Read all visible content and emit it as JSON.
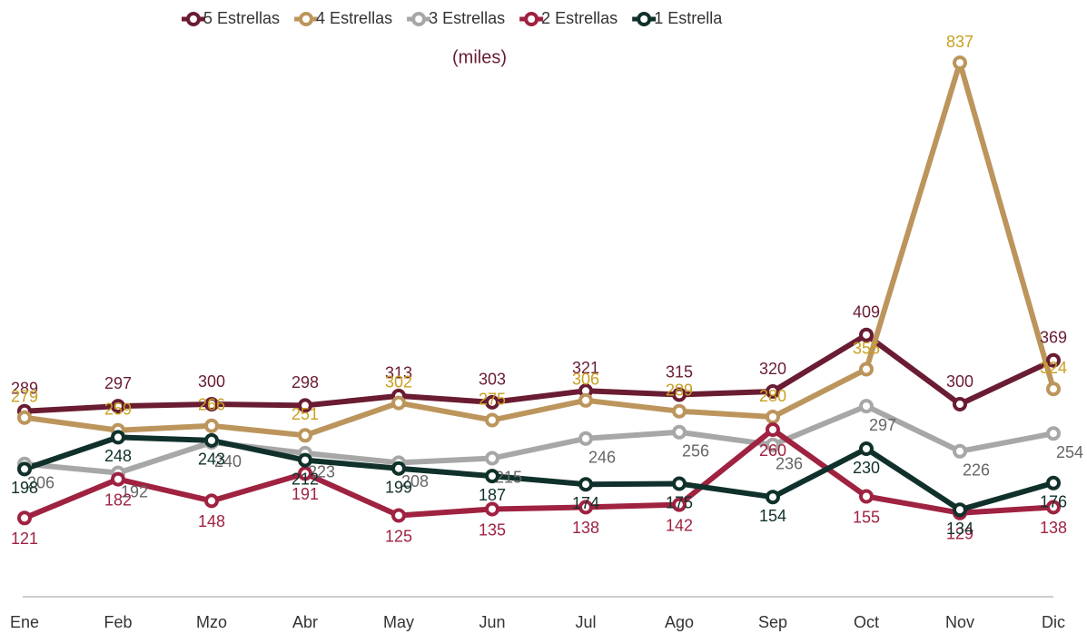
{
  "chart_data": {
    "type": "line",
    "subtitle": "(miles)",
    "categories": [
      "Ene",
      "Feb",
      "Mzo",
      "Abr",
      "May",
      "Jun",
      "Jul",
      "Ago",
      "Sep",
      "Oct",
      "Nov",
      "Dic"
    ],
    "ylim": [
      0,
      900
    ],
    "series": [
      {
        "name": "5 Estrellas",
        "color": "#691c32",
        "label_color": "#691c32",
        "values": [
          289,
          297,
          300,
          298,
          313,
          303,
          321,
          315,
          320,
          409,
          300,
          369
        ]
      },
      {
        "name": "4 Estrellas",
        "color": "#bc955c",
        "label_color": "#c9a020",
        "values": [
          279,
          259,
          266,
          251,
          302,
          275,
          306,
          289,
          280,
          355,
          837,
          324
        ]
      },
      {
        "name": "3 Estrellas",
        "color": "#a7a7a7",
        "label_color": "#666666",
        "values": [
          206,
          192,
          240,
          223,
          208,
          215,
          246,
          256,
          236,
          297,
          226,
          254
        ]
      },
      {
        "name": "2 Estrellas",
        "color": "#9f2241",
        "label_color": "#9f2241",
        "values": [
          121,
          182,
          148,
          191,
          125,
          135,
          138,
          142,
          260,
          155,
          129,
          138
        ]
      },
      {
        "name": "1 Estrella",
        "color": "#10312b",
        "label_color": "#10312b",
        "values": [
          198,
          248,
          243,
          212,
          199,
          187,
          174,
          175,
          154,
          230,
          134,
          176
        ]
      }
    ]
  }
}
